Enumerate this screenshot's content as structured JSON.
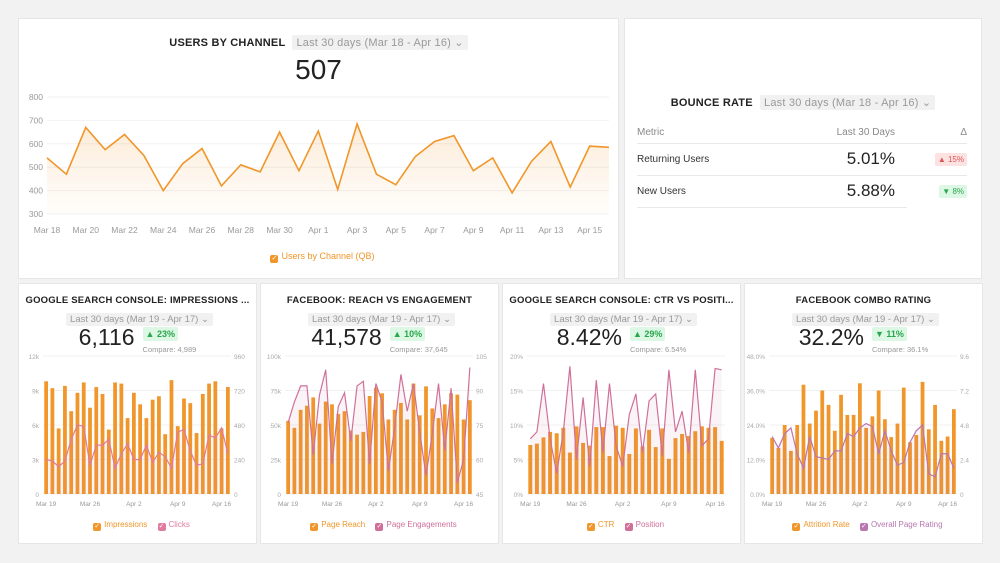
{
  "users_by_channel": {
    "title": "USERS BY CHANNEL",
    "range": "Last 30 days (Mar 18 - Apr 16)",
    "total": "507",
    "chart_data": {
      "type": "area",
      "x": [
        "Mar 18",
        "Mar 19",
        "Mar 20",
        "Mar 21",
        "Mar 22",
        "Mar 23",
        "Mar 24",
        "Mar 25",
        "Mar 26",
        "Mar 27",
        "Mar 28",
        "Mar 29",
        "Mar 30",
        "Mar 31",
        "Apr 1",
        "Apr 2",
        "Apr 3",
        "Apr 4",
        "Apr 5",
        "Apr 6",
        "Apr 7",
        "Apr 8",
        "Apr 9",
        "Apr 10",
        "Apr 11",
        "Apr 12",
        "Apr 13",
        "Apr 14",
        "Apr 15",
        "Apr 16"
      ],
      "series": [
        {
          "name": "Users by Channel (QB)",
          "color": "#f0962a",
          "values": [
            540,
            470,
            670,
            575,
            640,
            550,
            400,
            515,
            580,
            420,
            510,
            480,
            650,
            485,
            655,
            405,
            685,
            470,
            425,
            545,
            610,
            635,
            485,
            540,
            390,
            525,
            610,
            415,
            590,
            585
          ]
        }
      ],
      "ylim": [
        300,
        800
      ],
      "yticks": [
        "300",
        "400",
        "500",
        "600",
        "700",
        "800"
      ],
      "xticks": [
        "Mar 18",
        "Mar 20",
        "Mar 22",
        "Mar 24",
        "Mar 26",
        "Mar 28",
        "Mar 30",
        "Apr 1",
        "Apr 3",
        "Apr 5",
        "Apr 7",
        "Apr 9",
        "Apr 11",
        "Apr 13",
        "Apr 15"
      ],
      "grid": true,
      "legend": "bottom"
    }
  },
  "bounce_rate": {
    "title": "BOUNCE RATE",
    "range": "Last 30 days (Mar 18 - Apr 16)",
    "columns": [
      "Metric",
      "Last 30 Days",
      "Δ"
    ],
    "rows": [
      {
        "metric": "Returning Users",
        "value": "5.01%",
        "delta": "▲ 15%",
        "dir": "up"
      },
      {
        "metric": "New Users",
        "value": "5.88%",
        "delta": "▼ 8%",
        "dir": "down"
      }
    ]
  },
  "widgets": [
    {
      "title": "GOOGLE SEARCH CONSOLE: IMPRESSIONS ...",
      "range": "Last 30 days (Mar 19 - Apr 17)",
      "value": "6,116",
      "delta": "▲ 23%",
      "dir": "up",
      "compare": "Compare: 4,989",
      "chart_data": {
        "type": "bar+line",
        "xticks": [
          "Mar 19",
          "Mar 26",
          "Apr 2",
          "Apr 9",
          "Apr 16"
        ],
        "ylim": [
          0,
          12000
        ],
        "yticks": [
          "0",
          "3k",
          "6k",
          "9k",
          "12k"
        ],
        "y2lim": [
          0,
          960
        ],
        "y2ticks": [
          "0",
          "240",
          "480",
          "720",
          "960"
        ],
        "series": [
          {
            "name": "Impressions",
            "type": "bar",
            "color": "#f0962a",
            "values": [
              9800,
              9200,
              5700,
              9400,
              7200,
              8800,
              9700,
              7500,
              9300,
              8700,
              5600,
              9700,
              9600,
              6600,
              8800,
              7800,
              6600,
              8200,
              8500,
              5200,
              9900,
              5900,
              8300,
              7900,
              5300,
              8700,
              9600,
              9800,
              5700,
              9300
            ]
          },
          {
            "name": "Clicks",
            "type": "line",
            "axis": "right",
            "color": "#e07aa0",
            "values": [
              240,
              230,
              190,
              230,
              380,
              480,
              470,
              200,
              340,
              340,
              380,
              180,
              280,
              350,
              240,
              240,
              340,
              220,
              290,
              260,
              180,
              430,
              450,
              300,
              200,
              210,
              410,
              390,
              460,
              280
            ]
          }
        ]
      }
    },
    {
      "title": "FACEBOOK: REACH VS ENGAGEMENT",
      "range": "Last 30 days (Mar 19 - Apr 17)",
      "value": "41,578",
      "delta": "▲ 10%",
      "dir": "up",
      "compare": "Compare: 37,645",
      "chart_data": {
        "type": "bar+line",
        "xticks": [
          "Mar 19",
          "Mar 26",
          "Apr 2",
          "Apr 9",
          "Apr 16"
        ],
        "ylim": [
          0,
          100000
        ],
        "yticks": [
          "0",
          "25k",
          "50k",
          "75k",
          "100k"
        ],
        "y2lim": [
          45,
          105
        ],
        "y2ticks": [
          "45",
          "60",
          "75",
          "90",
          "105"
        ],
        "series": [
          {
            "name": "Page Reach",
            "type": "bar",
            "color": "#f0962a",
            "values": [
              53000,
              48000,
              61000,
              64000,
              70000,
              51000,
              67000,
              65000,
              58000,
              60000,
              46000,
              43000,
              45000,
              71000,
              77000,
              73000,
              54000,
              61000,
              66000,
              54000,
              80000,
              57000,
              78000,
              62000,
              55000,
              65000,
              73000,
              72000,
              54000,
              68000
            ]
          },
          {
            "name": "Page Engagements",
            "type": "line",
            "axis": "right",
            "color": "#d0709a",
            "values": [
              76,
              85,
              92,
              92,
              62,
              88,
              99,
              58,
              83,
              89,
              68,
              92,
              94,
              58,
              93,
              85,
              55,
              74,
              97,
              81,
              93,
              72,
              53,
              71,
              93,
              64,
              91,
              50,
              60,
              100
            ]
          }
        ]
      }
    },
    {
      "title": "GOOGLE SEARCH CONSOLE: CTR VS POSITI...",
      "range": "Last 30 days (Mar 19 - Apr 17)",
      "value": "8.42%",
      "delta": "▲ 29%",
      "dir": "up",
      "compare": "Compare: 6.54%",
      "chart_data": {
        "type": "bar+line",
        "xticks": [
          "Mar 19",
          "Mar 26",
          "Apr 2",
          "Apr 9",
          "Apr 16"
        ],
        "ylim": [
          0,
          20
        ],
        "yticks": [
          "0%",
          "5%",
          "10%",
          "15%",
          "20%"
        ],
        "series": [
          {
            "name": "CTR",
            "type": "bar",
            "color": "#f0962a",
            "values": [
              7.1,
              7.3,
              8.2,
              9,
              8.8,
              9.6,
              6,
              9.8,
              7.4,
              7,
              9.7,
              9.7,
              5.5,
              9.9,
              9.6,
              5.8,
              9.5,
              6.9,
              9.3,
              6.8,
              9.5,
              5.1,
              8.1,
              8.7,
              8.4,
              9.1,
              9.8,
              9.6,
              9.7,
              7.7
            ]
          },
          {
            "name": "Position",
            "type": "line",
            "axis": "left",
            "color": "#d0709a",
            "values": [
              8,
              9,
              16,
              8,
              3,
              9,
              18.5,
              5,
              14,
              4,
              16.5,
              6,
              16,
              7,
              4,
              11.5,
              14.5,
              6,
              13.5,
              14.5,
              5.5,
              18,
              9,
              12,
              6,
              18,
              7,
              8,
              18.2,
              18
            ]
          }
        ]
      }
    },
    {
      "title": "FACEBOOK COMBO RATING",
      "range": "Last 30 days (Mar 19 - Apr 17)",
      "value": "32.2%",
      "delta": "▼ 11%",
      "dir": "down",
      "compare": "Compare: 36.1%",
      "chart_data": {
        "type": "bar+line",
        "xticks": [
          "Mar 19",
          "Mar 26",
          "Apr 2",
          "Apr 9",
          "Apr 16"
        ],
        "ylim": [
          0,
          48
        ],
        "yticks": [
          "0.0%",
          "12.0%",
          "24.0%",
          "36.0%",
          "48.0%"
        ],
        "y2lim": [
          0,
          9.6
        ],
        "y2ticks": [
          "0",
          "2.4",
          "4.8",
          "7.2",
          "9.6"
        ],
        "series": [
          {
            "name": "Attrition Rate",
            "type": "bar",
            "color": "#f0962a",
            "values": [
              19.5,
              16,
              24,
              15,
              24,
              38,
              24.5,
              29,
              36,
              31,
              22,
              34.5,
              27.5,
              27.5,
              38.5,
              23,
              27,
              36,
              26,
              19.8,
              24.5,
              37,
              18,
              20.5,
              39,
              22.5,
              31,
              18.5,
              20,
              29.5
            ]
          },
          {
            "name": "Overall Page Rating",
            "type": "line",
            "axis": "right",
            "color": "#b877b0",
            "values": [
              4,
              3.2,
              4.2,
              4.6,
              2.8,
              1.8,
              4,
              2.6,
              2.5,
              2.4,
              3,
              3,
              4.2,
              4,
              4.6,
              4.9,
              4.7,
              2.8,
              4.4,
              3,
              2,
              2.2,
              3.6,
              4.4,
              4.8,
              1.4,
              1.2,
              2.8,
              2.8,
              1.8
            ]
          }
        ]
      }
    }
  ]
}
